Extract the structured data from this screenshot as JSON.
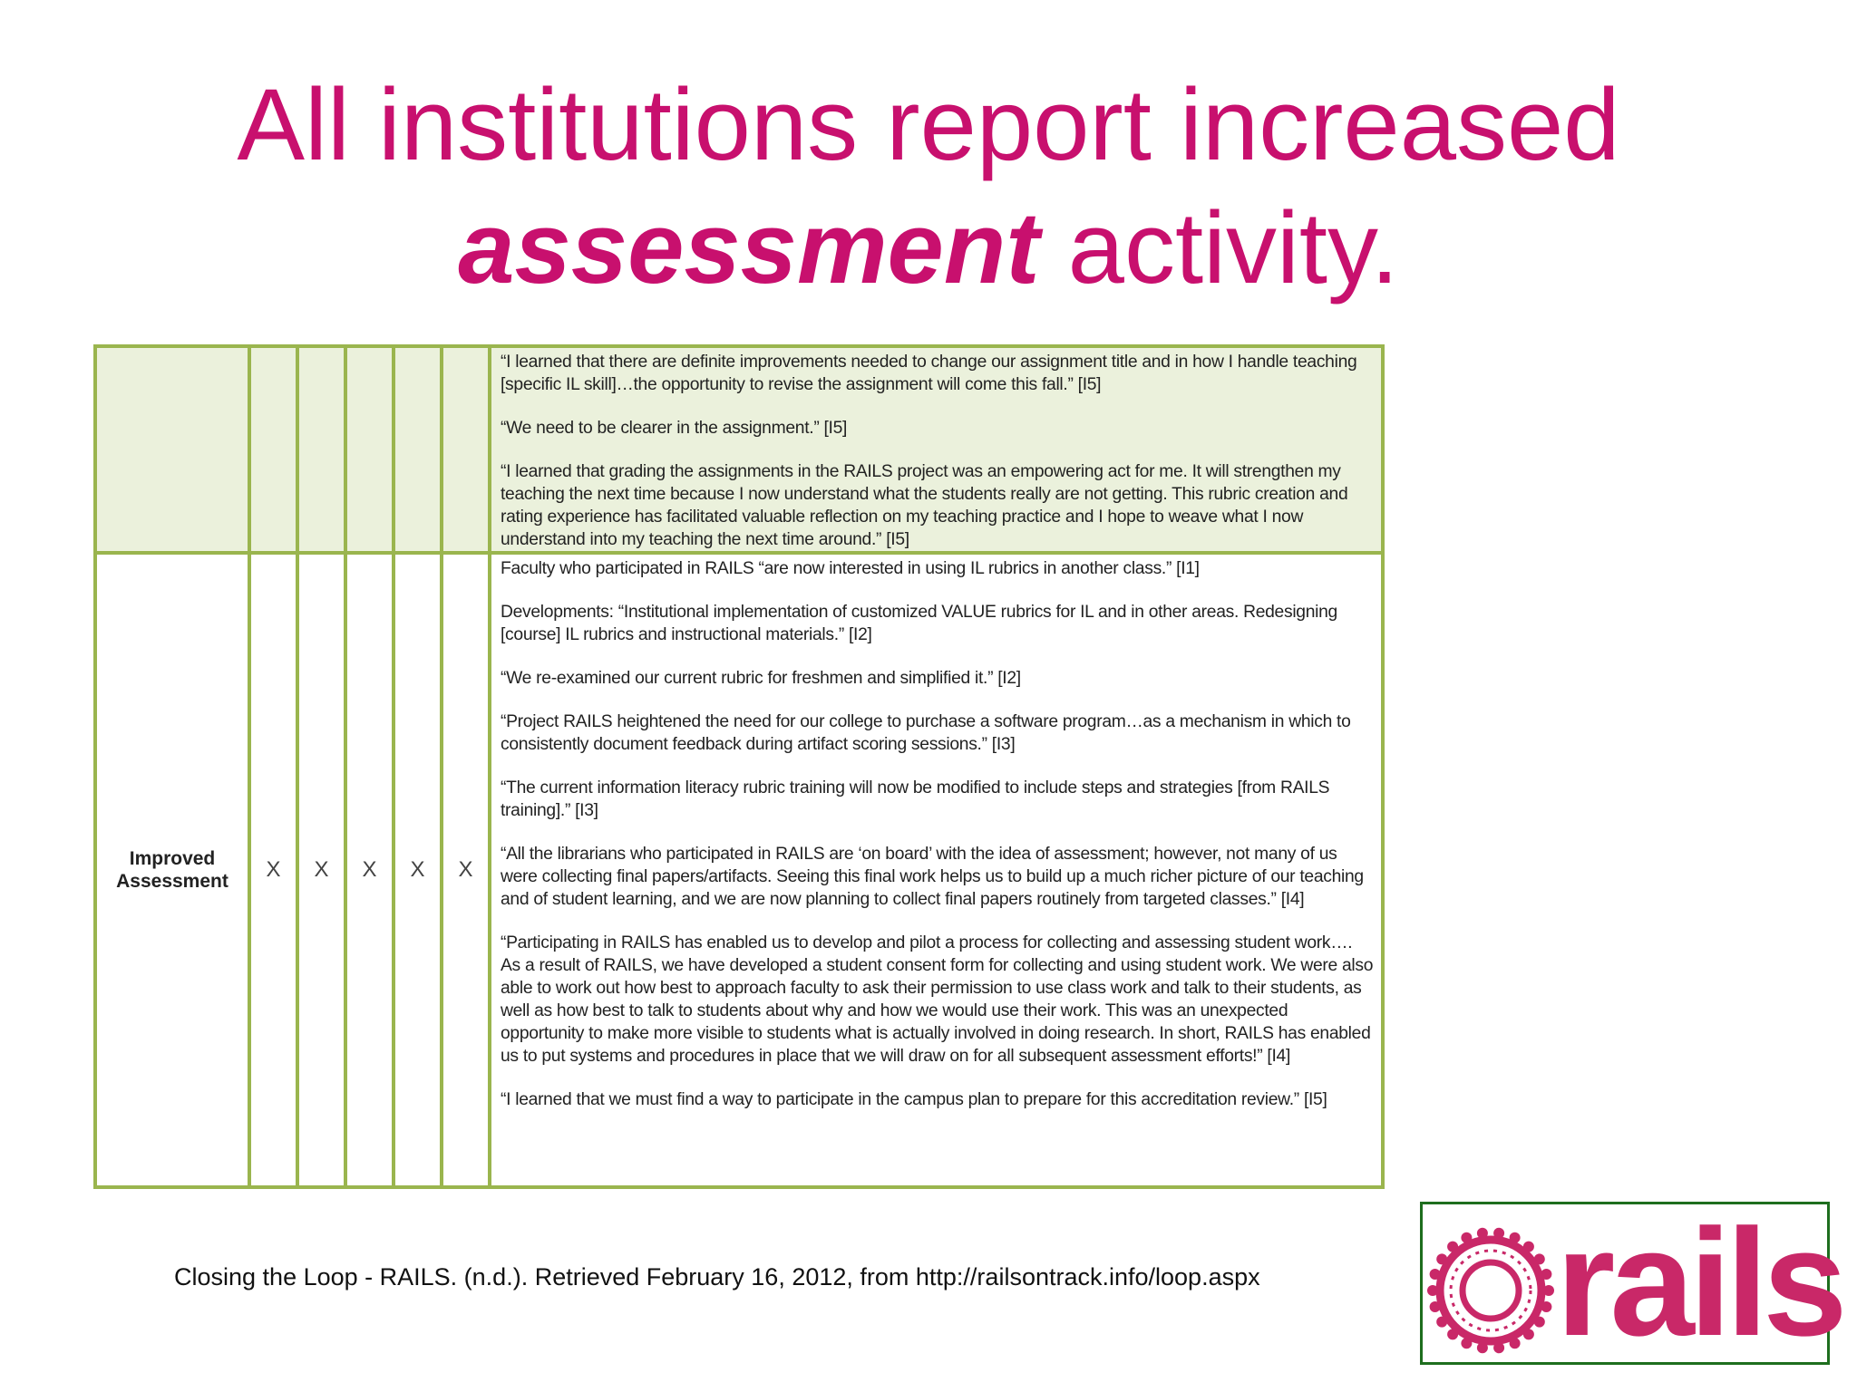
{
  "title": {
    "line1": "All institutions report increased",
    "emphasis": "assessment",
    "line2_rest": " activity."
  },
  "table": {
    "top_row": {
      "marks": [
        "",
        "",
        "",
        "",
        ""
      ],
      "quotes": [
        "“I learned that there are definite improvements needed to change our assignment title and in how I handle teaching [specific IL skill]…the opportunity to revise the assignment will come this fall.” [I5]",
        "“We need to be clearer in the assignment.” [I5]",
        "“I learned that grading the assignments in the RAILS project was an empowering act for me.  It will strengthen my teaching the next time because I now understand what the students really are not getting.  This rubric creation and rating experience has facilitated valuable reflection on my teaching practice and I hope to weave what I now understand into my teaching the next time around.” [I5]"
      ]
    },
    "main_row": {
      "label": "Improved Assessment",
      "marks": [
        "X",
        "X",
        "X",
        "X",
        "X"
      ],
      "quotes": [
        "Faculty who participated in RAILS “are now interested in using IL rubrics in another class.” [I1]",
        "Developments: “Institutional implementation of customized VALUE rubrics for IL and in other areas. Redesigning [course] IL rubrics and instructional materials.” [I2]",
        "“We re-examined our current rubric for freshmen and simplified it.” [I2]",
        "“Project RAILS heightened the need for our college to purchase a software program…as a mechanism in which to consistently document feedback during artifact scoring sessions.”  [I3]",
        "“The current information literacy rubric training will now be modified to include steps and strategies [from RAILS training].”  [I3]",
        "“All the librarians who participated in RAILS are ‘on board’ with the idea of assessment; however, not many of us were collecting final papers/artifacts.  Seeing this final work helps us to build up a much richer picture of our teaching and of student learning, and we are now planning to collect final papers routinely from targeted classes.” [I4]",
        "“Participating in RAILS has enabled us to develop and pilot a process for collecting and assessing student work….  As a result of RAILS, we have developed a student consent form for collecting and using student work.  We were also able to work out how best to approach faculty to ask their permission to use class work and talk to their students, as well as how best to talk to students about why and how we would use their work.  This was an unexpected opportunity to make more visible to students what is actually involved in doing research.  In short, RAILS has enabled us to put systems and procedures in place that we will draw on for all subsequent assessment efforts!” [I4]",
        "“I learned that we must find a way to participate in the campus plan to prepare for this accreditation review.” [I5]"
      ]
    }
  },
  "citation": "Closing the Loop - RAILS. (n.d.). Retrieved February 16, 2012, from http://railsontrack.info/loop.aspx",
  "logo": {
    "text": "rails",
    "brand_color": "#c92868",
    "border_color": "#1e6e1e",
    "icon": "gear-ring-icon"
  },
  "colors": {
    "title": "#c8106e",
    "table_border": "#9ab54e",
    "table_shade": "#ebf1dc"
  }
}
